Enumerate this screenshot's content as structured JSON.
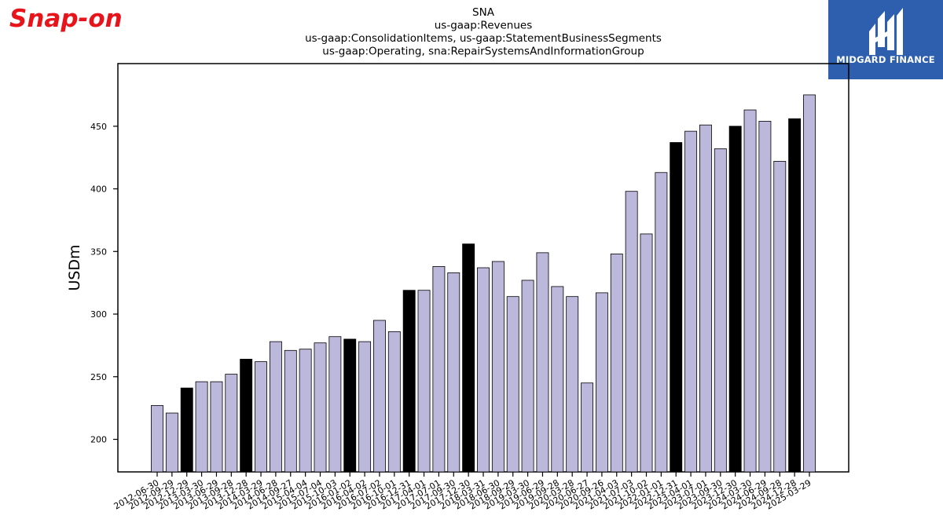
{
  "logos": {
    "left_brand": "Snap-on",
    "right_brand": "MIDGARD FINANCE"
  },
  "colors": {
    "bar_default": "#bcb8db",
    "bar_highlight": "#000000",
    "bar_edge": "#000000",
    "brand_red": "#e8141c",
    "midgard_blue": "#2d5fae"
  },
  "chart_data": {
    "type": "bar",
    "title_lines": [
      "SNA",
      "us-gaap:Revenues",
      "us-gaap:ConsolidationItems, us-gaap:StatementBusinessSegments",
      "us-gaap:Operating, sna:RepairSystemsAndInformationGroup"
    ],
    "xlabel": "",
    "ylabel": "USDm",
    "ylim": [
      174,
      500
    ],
    "yticks": [
      200,
      250,
      300,
      350,
      400,
      450
    ],
    "grid": false,
    "categories": [
      "2012-06-30",
      "2012-09-29",
      "2012-12-29",
      "2013-03-30",
      "2013-06-29",
      "2013-09-28",
      "2013-12-28",
      "2014-03-29",
      "2014-06-28",
      "2014-09-27",
      "2015-04-04",
      "2015-07-04",
      "2015-10-03",
      "2016-01-02",
      "2016-04-02",
      "2016-07-02",
      "2016-10-01",
      "2016-12-31",
      "2017-04-01",
      "2017-07-01",
      "2017-09-30",
      "2017-12-30",
      "2018-03-31",
      "2018-06-30",
      "2018-09-29",
      "2019-03-30",
      "2019-06-29",
      "2019-09-28",
      "2020-03-28",
      "2020-06-27",
      "2020-09-26",
      "2021-04-03",
      "2021-07-03",
      "2021-10-02",
      "2022-01-01",
      "2022-12-31",
      "2023-04-01",
      "2023-07-01",
      "2023-09-30",
      "2023-12-30",
      "2024-03-30",
      "2024-06-29",
      "2024-09-28",
      "2024-12-28",
      "2025-03-29"
    ],
    "values": [
      227,
      221,
      241,
      246,
      246,
      252,
      264,
      262,
      278,
      271,
      272,
      277,
      282,
      280,
      278,
      295,
      286,
      319,
      319,
      338,
      333,
      356,
      337,
      342,
      314,
      327,
      349,
      322,
      314,
      245,
      317,
      348,
      398,
      364,
      413,
      437,
      446,
      451,
      432,
      450,
      463,
      454,
      422,
      456,
      475
    ],
    "highlight": [
      false,
      false,
      true,
      false,
      false,
      false,
      true,
      false,
      false,
      false,
      false,
      false,
      false,
      true,
      false,
      false,
      false,
      true,
      false,
      false,
      false,
      true,
      false,
      false,
      false,
      false,
      false,
      false,
      false,
      false,
      false,
      false,
      false,
      false,
      false,
      true,
      false,
      false,
      false,
      true,
      false,
      false,
      false,
      true,
      false
    ]
  }
}
